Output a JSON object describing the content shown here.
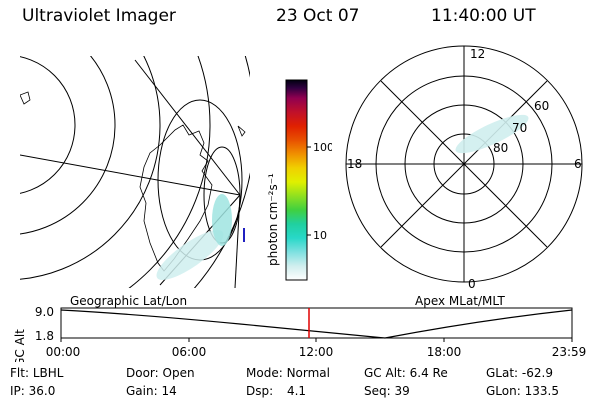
{
  "header": {
    "title": "Ultraviolet Imager",
    "date": "23 Oct 07",
    "time": "11:40:00 UT"
  },
  "geo_panel": {
    "label": "Geographic Lat/Lon"
  },
  "colorbar": {
    "unit_label": "photon cm⁻²s⁻¹",
    "ticks": [
      "100",
      "10"
    ],
    "stops": [
      "#ffffff",
      "#d0eeee",
      "#7ee0e0",
      "#28d8c8",
      "#20d0a0",
      "#40d040",
      "#90e020",
      "#e0f000",
      "#f0d000",
      "#f09000",
      "#e85000",
      "#e02000",
      "#c0102a",
      "#900050",
      "#300040",
      "#000010"
    ]
  },
  "polar_panel": {
    "label": "Apex MLat/MLT",
    "mlt_labels": {
      "top": "12",
      "bottom": "0",
      "left": "18",
      "right": "6"
    },
    "lat_labels": [
      "60",
      "70",
      "80"
    ]
  },
  "altitude_plot": {
    "ylabel": "GC Alt",
    "y_ticks": [
      "9.0",
      "1.8"
    ],
    "x_ticks": [
      "00:00",
      "06:00",
      "12:00",
      "18:00",
      "23:59"
    ],
    "current_time_marker": "11:40",
    "marker_color": "#e00000"
  },
  "info": {
    "filter_label": "Flt:",
    "filter_value": "LBHL",
    "ip_label": "IP:",
    "ip_value": "36.0",
    "door_label": "Door:",
    "door_value": "Open",
    "gain_label": "Gain:",
    "gain_value": "14",
    "mode_label": "Mode:",
    "mode_value": "Normal",
    "dsp_label": "Dsp:",
    "dsp_value": "4.1",
    "gcalt_label": "GC Alt:",
    "gcalt_value": "6.4 Re",
    "seq_label": "Seq:",
    "seq_value": "39",
    "glat_label": "GLat:",
    "glat_value": "-62.9",
    "glon_label": "GLon:",
    "glon_value": "133.5"
  }
}
